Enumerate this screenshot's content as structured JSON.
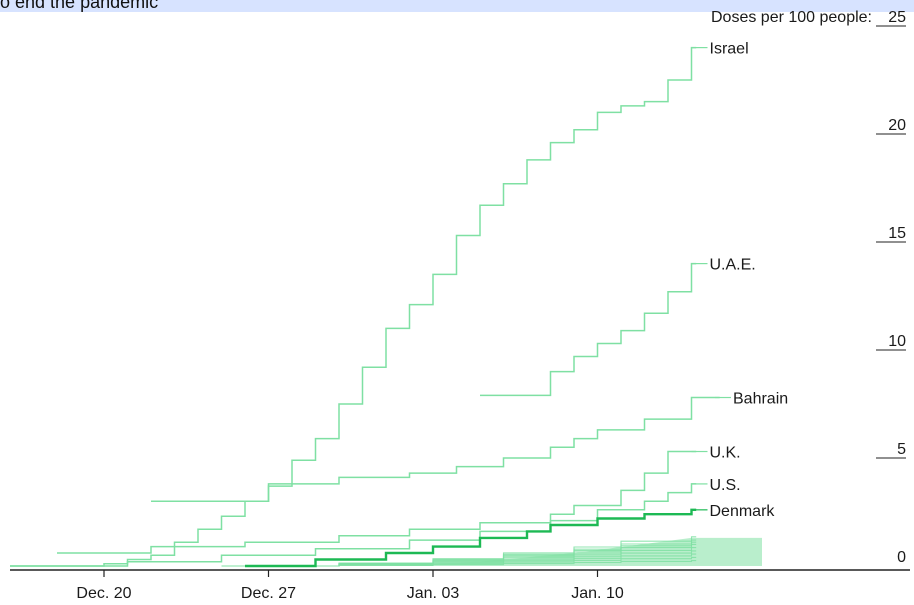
{
  "header": {
    "text": "o end the pandemic"
  },
  "colors": {
    "accent": "#1db954",
    "faint": "#7fe0a3",
    "axis": "#222222"
  },
  "chart_data": {
    "type": "line",
    "title": "",
    "ylabel": "Doses per 100 people:",
    "ylim": [
      0,
      25
    ],
    "yticks": [
      0,
      5,
      10,
      15,
      20,
      25
    ],
    "x_range": [
      "2020-12-16",
      "2021-01-17"
    ],
    "xticks": [
      {
        "date": "2020-12-20",
        "label": "Dec. 20"
      },
      {
        "date": "2020-12-27",
        "label": "Dec. 27"
      },
      {
        "date": "2021-01-03",
        "label": "Jan. 03"
      },
      {
        "date": "2021-01-10",
        "label": "Jan. 10"
      }
    ],
    "series": [
      {
        "name": "Israel",
        "highlight": false,
        "x": [
          "2020-12-16",
          "2020-12-20",
          "2020-12-21",
          "2020-12-22",
          "2020-12-23",
          "2020-12-24",
          "2020-12-25",
          "2020-12-26",
          "2020-12-27",
          "2020-12-28",
          "2020-12-29",
          "2020-12-30",
          "2020-12-31",
          "2021-01-01",
          "2021-01-02",
          "2021-01-03",
          "2021-01-04",
          "2021-01-05",
          "2021-01-06",
          "2021-01-07",
          "2021-01-08",
          "2021-01-09",
          "2021-01-10",
          "2021-01-11",
          "2021-01-12",
          "2021-01-13",
          "2021-01-14"
        ],
        "y": [
          0,
          0.1,
          0.3,
          0.5,
          1.1,
          1.7,
          2.3,
          3.0,
          3.7,
          4.9,
          5.9,
          7.5,
          9.2,
          11.0,
          12.1,
          13.5,
          15.3,
          16.7,
          17.7,
          18.8,
          19.6,
          20.2,
          21.0,
          21.3,
          21.5,
          22.5,
          24.0
        ]
      },
      {
        "name": "U.A.E.",
        "highlight": false,
        "x": [
          "2021-01-05",
          "2021-01-06",
          "2021-01-07",
          "2021-01-08",
          "2021-01-09",
          "2021-01-10",
          "2021-01-11",
          "2021-01-12",
          "2021-01-13",
          "2021-01-14"
        ],
        "y": [
          7.9,
          7.9,
          7.9,
          9.0,
          9.7,
          10.3,
          10.9,
          11.7,
          12.7,
          14.0
        ]
      },
      {
        "name": "Bahrain",
        "highlight": false,
        "x": [
          "2020-12-22",
          "2020-12-27",
          "2020-12-30",
          "2021-01-02",
          "2021-01-04",
          "2021-01-06",
          "2021-01-08",
          "2021-01-09",
          "2021-01-10",
          "2021-01-12",
          "2021-01-14",
          "2021-01-15"
        ],
        "y": [
          3.0,
          3.8,
          4.1,
          4.3,
          4.6,
          5.0,
          5.5,
          5.9,
          6.3,
          6.8,
          7.8,
          7.8
        ]
      },
      {
        "name": "U.K.",
        "highlight": false,
        "x": [
          "2020-12-18",
          "2020-12-22",
          "2020-12-26",
          "2020-12-30",
          "2021-01-02",
          "2021-01-05",
          "2021-01-08",
          "2021-01-09",
          "2021-01-11",
          "2021-01-12",
          "2021-01-13",
          "2021-01-14"
        ],
        "y": [
          0.6,
          0.9,
          1.1,
          1.4,
          1.7,
          2.0,
          2.4,
          2.8,
          3.5,
          4.3,
          5.3,
          5.3
        ]
      },
      {
        "name": "U.S.",
        "highlight": false,
        "x": [
          "2020-12-16",
          "2020-12-21",
          "2020-12-25",
          "2020-12-29",
          "2021-01-02",
          "2021-01-05",
          "2021-01-08",
          "2021-01-10",
          "2021-01-12",
          "2021-01-13",
          "2021-01-14"
        ],
        "y": [
          0,
          0.2,
          0.5,
          0.8,
          1.2,
          1.6,
          2.1,
          2.6,
          3.0,
          3.4,
          3.8
        ]
      },
      {
        "name": "Denmark",
        "highlight": true,
        "x": [
          "2020-12-26",
          "2020-12-29",
          "2021-01-01",
          "2021-01-03",
          "2021-01-05",
          "2021-01-07",
          "2021-01-08",
          "2021-01-10",
          "2021-01-12",
          "2021-01-14"
        ],
        "y": [
          0,
          0.3,
          0.6,
          0.9,
          1.3,
          1.6,
          1.9,
          2.2,
          2.4,
          2.6
        ]
      }
    ]
  }
}
